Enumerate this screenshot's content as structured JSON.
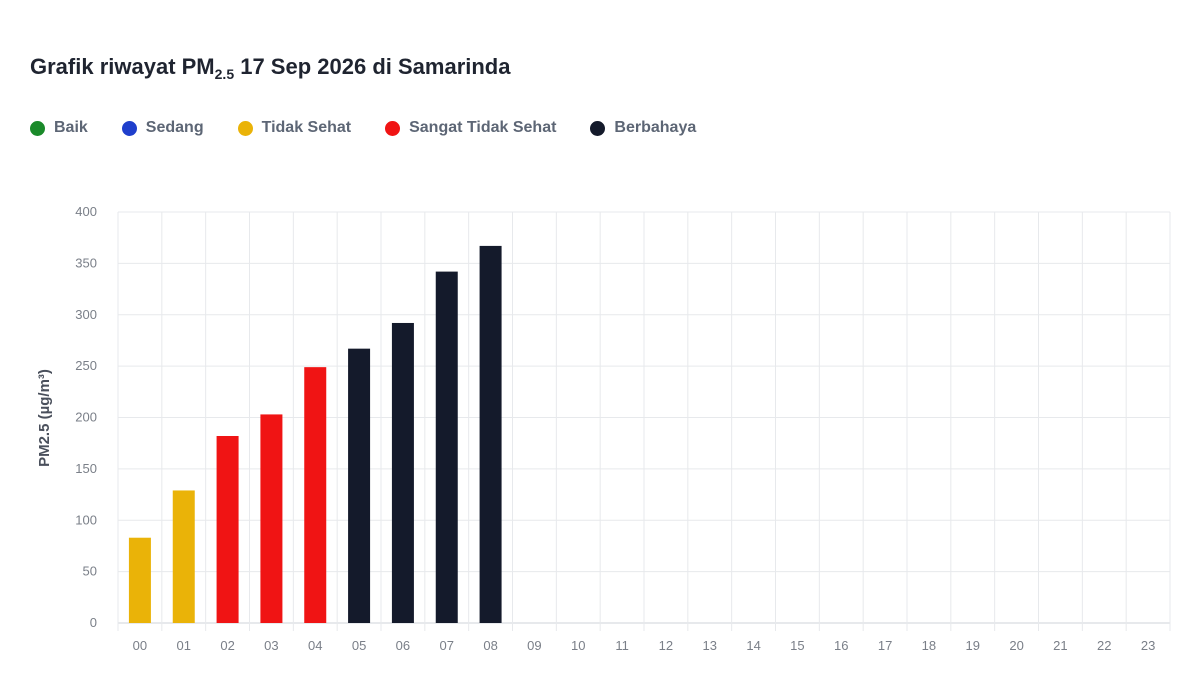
{
  "title": {
    "prefix": "Grafik riwayat PM",
    "subscript": "2.5",
    "suffix": " 17 Sep 2026 di Samarinda"
  },
  "legend": [
    {
      "label": "Baik",
      "color": "#1a8a2a"
    },
    {
      "label": "Sedang",
      "color": "#1f3fcc"
    },
    {
      "label": "Tidak Sehat",
      "color": "#eab308"
    },
    {
      "label": "Sangat Tidak Sehat",
      "color": "#f01414"
    },
    {
      "label": "Berbahaya",
      "color": "#141a2b"
    }
  ],
  "chart_data": {
    "type": "bar",
    "title": "Grafik riwayat PM2.5 17 Sep 2026 di Samarinda",
    "xlabel": "",
    "ylabel": "PM2.5 (µg/m³)",
    "ylim": [
      0,
      400
    ],
    "yticks": [
      0,
      50,
      100,
      150,
      200,
      250,
      300,
      350,
      400
    ],
    "grid": true,
    "legend_placement": "top-left",
    "categories": [
      "00",
      "01",
      "02",
      "03",
      "04",
      "05",
      "06",
      "07",
      "08",
      "09",
      "10",
      "11",
      "12",
      "13",
      "14",
      "15",
      "16",
      "17",
      "18",
      "19",
      "20",
      "21",
      "22",
      "23"
    ],
    "values": [
      83,
      129,
      182,
      203,
      249,
      267,
      292,
      342,
      367,
      null,
      null,
      null,
      null,
      null,
      null,
      null,
      null,
      null,
      null,
      null,
      null,
      null,
      null,
      null
    ],
    "bar_colors": [
      "#eab308",
      "#eab308",
      "#f01414",
      "#f01414",
      "#f01414",
      "#141a2b",
      "#141a2b",
      "#141a2b",
      "#141a2b"
    ]
  }
}
